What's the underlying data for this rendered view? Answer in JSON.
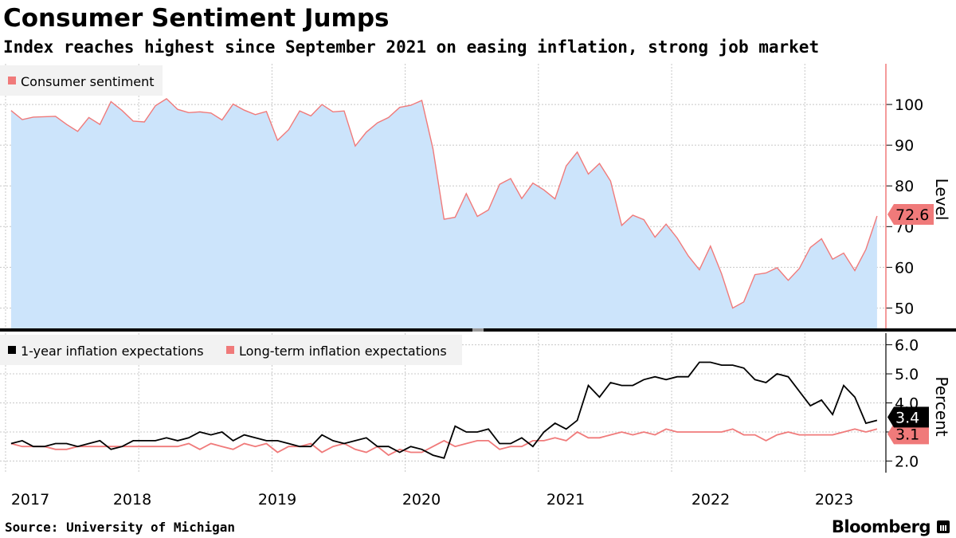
{
  "header": {
    "title": "Consumer Sentiment Jumps",
    "subtitle": "Index reaches highest since September 2021 on easing inflation, strong job market"
  },
  "footer": {
    "source": "Source: University of Michigan",
    "brand": "Bloomberg",
    "brand_icon": "bloomberg-terminal-icon"
  },
  "colors": {
    "sentiment_line": "#f07a7a",
    "sentiment_fill": "#cce4fb",
    "one_year": "#000000",
    "long_term": "#f07a7a",
    "grid": "#c8c8c8",
    "legend_bg": "#f2f2f2"
  },
  "chart_data": [
    {
      "type": "area",
      "ylabel": "Level",
      "ylim": [
        45,
        110
      ],
      "yticks": [
        "50",
        "60",
        "70",
        "80",
        "90",
        "100"
      ],
      "xlim": [
        "2016-12",
        "2023-07"
      ],
      "x_tick_labels": [
        "2017",
        "2018",
        "2019",
        "2020",
        "2021",
        "2022",
        "2023"
      ],
      "grid": true,
      "legend_position": "top-left",
      "series": [
        {
          "name": "Consumer sentiment",
          "last_value_label": "72.6",
          "points": [
            [
              "2017-01",
              98.5
            ],
            [
              "2017-02",
              96.3
            ],
            [
              "2017-03",
              96.9
            ],
            [
              "2017-04",
              97.0
            ],
            [
              "2017-05",
              97.1
            ],
            [
              "2017-06",
              95.1
            ],
            [
              "2017-07",
              93.4
            ],
            [
              "2017-08",
              96.8
            ],
            [
              "2017-09",
              95.1
            ],
            [
              "2017-10",
              100.7
            ],
            [
              "2017-11",
              98.5
            ],
            [
              "2017-12",
              95.9
            ],
            [
              "2018-01",
              95.7
            ],
            [
              "2018-02",
              99.7
            ],
            [
              "2018-03",
              101.4
            ],
            [
              "2018-04",
              98.8
            ],
            [
              "2018-05",
              98.0
            ],
            [
              "2018-06",
              98.2
            ],
            [
              "2018-07",
              97.9
            ],
            [
              "2018-08",
              96.2
            ],
            [
              "2018-09",
              100.1
            ],
            [
              "2018-10",
              98.6
            ],
            [
              "2018-11",
              97.5
            ],
            [
              "2018-12",
              98.3
            ],
            [
              "2019-01",
              91.2
            ],
            [
              "2019-02",
              93.8
            ],
            [
              "2019-03",
              98.4
            ],
            [
              "2019-04",
              97.2
            ],
            [
              "2019-05",
              100.0
            ],
            [
              "2019-06",
              98.2
            ],
            [
              "2019-07",
              98.4
            ],
            [
              "2019-08",
              89.8
            ],
            [
              "2019-09",
              93.2
            ],
            [
              "2019-10",
              95.5
            ],
            [
              "2019-11",
              96.8
            ],
            [
              "2019-12",
              99.3
            ],
            [
              "2020-01",
              99.8
            ],
            [
              "2020-02",
              101.0
            ],
            [
              "2020-03",
              89.1
            ],
            [
              "2020-04",
              71.8
            ],
            [
              "2020-05",
              72.3
            ],
            [
              "2020-06",
              78.1
            ],
            [
              "2020-07",
              72.5
            ],
            [
              "2020-08",
              74.1
            ],
            [
              "2020-09",
              80.4
            ],
            [
              "2020-10",
              81.8
            ],
            [
              "2020-11",
              76.9
            ],
            [
              "2020-12",
              80.7
            ],
            [
              "2021-01",
              79.0
            ],
            [
              "2021-02",
              76.8
            ],
            [
              "2021-03",
              84.9
            ],
            [
              "2021-04",
              88.3
            ],
            [
              "2021-05",
              82.9
            ],
            [
              "2021-06",
              85.5
            ],
            [
              "2021-07",
              81.2
            ],
            [
              "2021-08",
              70.3
            ],
            [
              "2021-09",
              72.8
            ],
            [
              "2021-10",
              71.7
            ],
            [
              "2021-11",
              67.4
            ],
            [
              "2021-12",
              70.6
            ],
            [
              "2022-01",
              67.2
            ],
            [
              "2022-02",
              62.8
            ],
            [
              "2022-03",
              59.4
            ],
            [
              "2022-04",
              65.2
            ],
            [
              "2022-05",
              58.4
            ],
            [
              "2022-06",
              50.0
            ],
            [
              "2022-07",
              51.5
            ],
            [
              "2022-08",
              58.2
            ],
            [
              "2022-09",
              58.6
            ],
            [
              "2022-10",
              59.9
            ],
            [
              "2022-11",
              56.8
            ],
            [
              "2022-12",
              59.7
            ],
            [
              "2023-01",
              64.9
            ],
            [
              "2023-02",
              67.0
            ],
            [
              "2023-03",
              62.0
            ],
            [
              "2023-04",
              63.5
            ],
            [
              "2023-05",
              59.2
            ],
            [
              "2023-06",
              64.4
            ],
            [
              "2023-07",
              72.6
            ]
          ]
        }
      ]
    },
    {
      "type": "line",
      "ylabel": "Percent",
      "ylim": [
        1.6,
        6.4
      ],
      "yticks": [
        "2.0",
        "3.0",
        "4.0",
        "5.0",
        "6.0"
      ],
      "xlim": [
        "2016-12",
        "2023-07"
      ],
      "x_tick_labels": [
        "2017",
        "2018",
        "2019",
        "2020",
        "2021",
        "2022",
        "2023"
      ],
      "grid": true,
      "legend_position": "top-left",
      "series": [
        {
          "name": "1-year inflation expectations",
          "last_value_label": "3.4",
          "points": [
            [
              "2017-01",
              2.6
            ],
            [
              "2017-02",
              2.7
            ],
            [
              "2017-03",
              2.5
            ],
            [
              "2017-04",
              2.5
            ],
            [
              "2017-05",
              2.6
            ],
            [
              "2017-06",
              2.6
            ],
            [
              "2017-07",
              2.5
            ],
            [
              "2017-08",
              2.6
            ],
            [
              "2017-09",
              2.7
            ],
            [
              "2017-10",
              2.4
            ],
            [
              "2017-11",
              2.5
            ],
            [
              "2017-12",
              2.7
            ],
            [
              "2018-01",
              2.7
            ],
            [
              "2018-02",
              2.7
            ],
            [
              "2018-03",
              2.8
            ],
            [
              "2018-04",
              2.7
            ],
            [
              "2018-05",
              2.8
            ],
            [
              "2018-06",
              3.0
            ],
            [
              "2018-07",
              2.9
            ],
            [
              "2018-08",
              3.0
            ],
            [
              "2018-09",
              2.7
            ],
            [
              "2018-10",
              2.9
            ],
            [
              "2018-11",
              2.8
            ],
            [
              "2018-12",
              2.7
            ],
            [
              "2019-01",
              2.7
            ],
            [
              "2019-02",
              2.6
            ],
            [
              "2019-03",
              2.5
            ],
            [
              "2019-04",
              2.5
            ],
            [
              "2019-05",
              2.9
            ],
            [
              "2019-06",
              2.7
            ],
            [
              "2019-07",
              2.6
            ],
            [
              "2019-08",
              2.7
            ],
            [
              "2019-09",
              2.8
            ],
            [
              "2019-10",
              2.5
            ],
            [
              "2019-11",
              2.5
            ],
            [
              "2019-12",
              2.3
            ],
            [
              "2020-01",
              2.5
            ],
            [
              "2020-02",
              2.4
            ],
            [
              "2020-03",
              2.2
            ],
            [
              "2020-04",
              2.1
            ],
            [
              "2020-05",
              3.2
            ],
            [
              "2020-06",
              3.0
            ],
            [
              "2020-07",
              3.0
            ],
            [
              "2020-08",
              3.1
            ],
            [
              "2020-09",
              2.6
            ],
            [
              "2020-10",
              2.6
            ],
            [
              "2020-11",
              2.8
            ],
            [
              "2020-12",
              2.5
            ],
            [
              "2021-01",
              3.0
            ],
            [
              "2021-02",
              3.3
            ],
            [
              "2021-03",
              3.1
            ],
            [
              "2021-04",
              3.4
            ],
            [
              "2021-05",
              4.6
            ],
            [
              "2021-06",
              4.2
            ],
            [
              "2021-07",
              4.7
            ],
            [
              "2021-08",
              4.6
            ],
            [
              "2021-09",
              4.6
            ],
            [
              "2021-10",
              4.8
            ],
            [
              "2021-11",
              4.9
            ],
            [
              "2021-12",
              4.8
            ],
            [
              "2022-01",
              4.9
            ],
            [
              "2022-02",
              4.9
            ],
            [
              "2022-03",
              5.4
            ],
            [
              "2022-04",
              5.4
            ],
            [
              "2022-05",
              5.3
            ],
            [
              "2022-06",
              5.3
            ],
            [
              "2022-07",
              5.2
            ],
            [
              "2022-08",
              4.8
            ],
            [
              "2022-09",
              4.7
            ],
            [
              "2022-10",
              5.0
            ],
            [
              "2022-11",
              4.9
            ],
            [
              "2022-12",
              4.4
            ],
            [
              "2023-01",
              3.9
            ],
            [
              "2023-02",
              4.1
            ],
            [
              "2023-03",
              3.6
            ],
            [
              "2023-04",
              4.6
            ],
            [
              "2023-05",
              4.2
            ],
            [
              "2023-06",
              3.3
            ],
            [
              "2023-07",
              3.4
            ]
          ]
        },
        {
          "name": "Long-term inflation expectations",
          "last_value_label": "3.1",
          "points": [
            [
              "2017-01",
              2.6
            ],
            [
              "2017-02",
              2.5
            ],
            [
              "2017-03",
              2.5
            ],
            [
              "2017-04",
              2.5
            ],
            [
              "2017-05",
              2.4
            ],
            [
              "2017-06",
              2.4
            ],
            [
              "2017-07",
              2.5
            ],
            [
              "2017-08",
              2.5
            ],
            [
              "2017-09",
              2.5
            ],
            [
              "2017-10",
              2.5
            ],
            [
              "2017-11",
              2.5
            ],
            [
              "2017-12",
              2.5
            ],
            [
              "2018-01",
              2.5
            ],
            [
              "2018-02",
              2.5
            ],
            [
              "2018-03",
              2.5
            ],
            [
              "2018-04",
              2.5
            ],
            [
              "2018-05",
              2.6
            ],
            [
              "2018-06",
              2.4
            ],
            [
              "2018-07",
              2.6
            ],
            [
              "2018-08",
              2.5
            ],
            [
              "2018-09",
              2.4
            ],
            [
              "2018-10",
              2.6
            ],
            [
              "2018-11",
              2.5
            ],
            [
              "2018-12",
              2.6
            ],
            [
              "2019-01",
              2.3
            ],
            [
              "2019-02",
              2.5
            ],
            [
              "2019-03",
              2.5
            ],
            [
              "2019-04",
              2.6
            ],
            [
              "2019-05",
              2.3
            ],
            [
              "2019-06",
              2.5
            ],
            [
              "2019-07",
              2.6
            ],
            [
              "2019-08",
              2.4
            ],
            [
              "2019-09",
              2.3
            ],
            [
              "2019-10",
              2.5
            ],
            [
              "2019-11",
              2.2
            ],
            [
              "2019-12",
              2.4
            ],
            [
              "2020-01",
              2.3
            ],
            [
              "2020-02",
              2.3
            ],
            [
              "2020-03",
              2.5
            ],
            [
              "2020-04",
              2.7
            ],
            [
              "2020-05",
              2.5
            ],
            [
              "2020-06",
              2.6
            ],
            [
              "2020-07",
              2.7
            ],
            [
              "2020-08",
              2.7
            ],
            [
              "2020-09",
              2.4
            ],
            [
              "2020-10",
              2.5
            ],
            [
              "2020-11",
              2.5
            ],
            [
              "2020-12",
              2.7
            ],
            [
              "2021-01",
              2.7
            ],
            [
              "2021-02",
              2.8
            ],
            [
              "2021-03",
              2.7
            ],
            [
              "2021-04",
              3.0
            ],
            [
              "2021-05",
              2.8
            ],
            [
              "2021-06",
              2.8
            ],
            [
              "2021-07",
              2.9
            ],
            [
              "2021-08",
              3.0
            ],
            [
              "2021-09",
              2.9
            ],
            [
              "2021-10",
              3.0
            ],
            [
              "2021-11",
              2.9
            ],
            [
              "2021-12",
              3.1
            ],
            [
              "2022-01",
              3.0
            ],
            [
              "2022-02",
              3.0
            ],
            [
              "2022-03",
              3.0
            ],
            [
              "2022-04",
              3.0
            ],
            [
              "2022-05",
              3.0
            ],
            [
              "2022-06",
              3.1
            ],
            [
              "2022-07",
              2.9
            ],
            [
              "2022-08",
              2.9
            ],
            [
              "2022-09",
              2.7
            ],
            [
              "2022-10",
              2.9
            ],
            [
              "2022-11",
              3.0
            ],
            [
              "2022-12",
              2.9
            ],
            [
              "2023-01",
              2.9
            ],
            [
              "2023-02",
              2.9
            ],
            [
              "2023-03",
              2.9
            ],
            [
              "2023-04",
              3.0
            ],
            [
              "2023-05",
              3.1
            ],
            [
              "2023-06",
              3.0
            ],
            [
              "2023-07",
              3.1
            ]
          ]
        }
      ]
    }
  ]
}
